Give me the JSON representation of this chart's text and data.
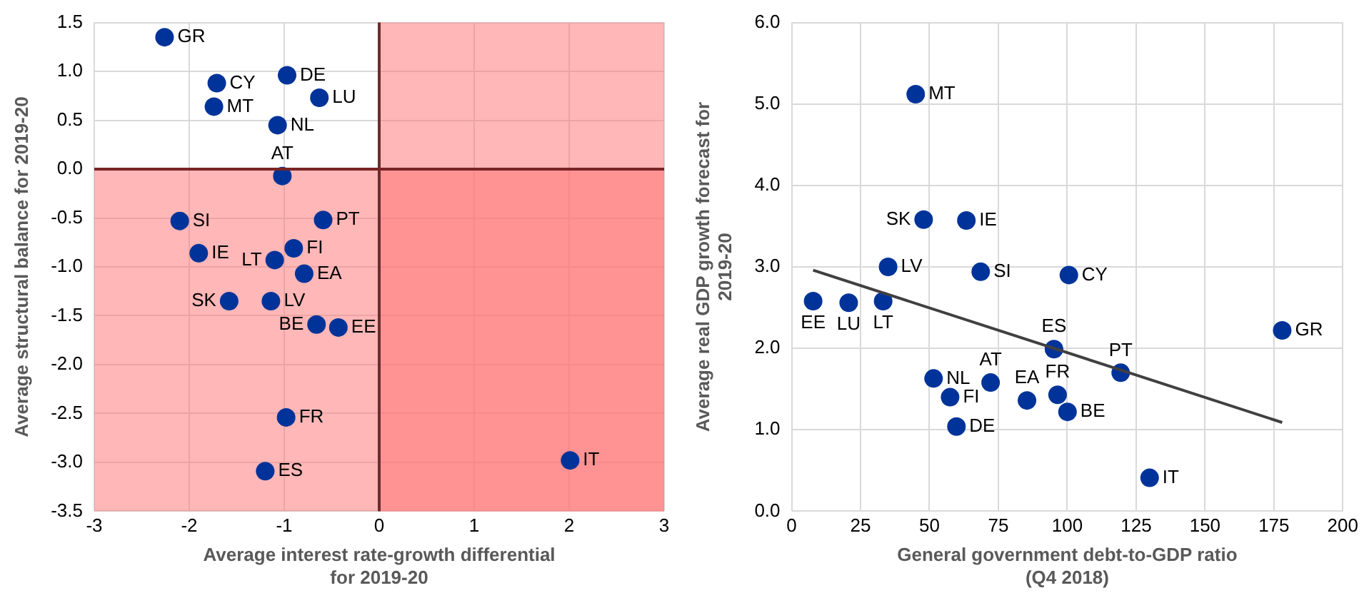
{
  "chart_data": [
    {
      "type": "scatter",
      "xlabel": "Average interest rate-growth differential for 2019-20",
      "ylabel": "Average structural balance for 2019-20",
      "series": [
        {
          "color": "#003399",
          "x": [
            -2.26,
            -1.71,
            -1.74,
            -0.97,
            -1.07,
            -0.63,
            -1.02,
            -2.1,
            -0.59,
            -1.9,
            -0.9,
            -1.1,
            -0.79,
            -1.58,
            -1.14,
            -0.66,
            -0.43,
            -0.98,
            -1.2,
            2.01
          ],
          "values": [
            1.35,
            0.88,
            0.64,
            0.96,
            0.45,
            0.73,
            -0.07,
            -0.53,
            -0.52,
            -0.86,
            -0.81,
            -0.93,
            -1.07,
            -1.35,
            -1.35,
            -1.59,
            -1.62,
            -2.54,
            -3.09,
            -2.98
          ]
        }
      ],
      "annotations": [
        {
          "text": "GR",
          "x": -2.26,
          "y": 1.35
        },
        {
          "text": "CY",
          "x": -1.71,
          "y": 0.88
        },
        {
          "text": "MT",
          "x": -1.74,
          "y": 0.64
        },
        {
          "text": "DE",
          "x": -0.97,
          "y": 0.96
        },
        {
          "text": "NL",
          "x": -1.07,
          "y": 0.45
        },
        {
          "text": "LU",
          "x": -0.63,
          "y": 0.73
        },
        {
          "text": "AT",
          "x": -1.02,
          "y": -0.07
        },
        {
          "text": "SI",
          "x": -2.1,
          "y": -0.53
        },
        {
          "text": "PT",
          "x": -0.59,
          "y": -0.52
        },
        {
          "text": "IE",
          "x": -1.9,
          "y": -0.86
        },
        {
          "text": "FI",
          "x": -0.9,
          "y": -0.81
        },
        {
          "text": "LT",
          "x": -1.1,
          "y": -0.93
        },
        {
          "text": "EA",
          "x": -0.79,
          "y": -1.07
        },
        {
          "text": "SK",
          "x": -1.58,
          "y": -1.35
        },
        {
          "text": "LV",
          "x": -1.14,
          "y": -1.35
        },
        {
          "text": "BE",
          "x": -0.66,
          "y": -1.59
        },
        {
          "text": "EE",
          "x": -0.43,
          "y": -1.62
        },
        {
          "text": "FR",
          "x": -0.98,
          "y": -2.54
        },
        {
          "text": "ES",
          "x": -1.2,
          "y": -3.09
        },
        {
          "text": "IT",
          "x": 2.01,
          "y": -2.98
        }
      ],
      "xlim": [
        -3,
        3
      ],
      "xticks": [
        -3,
        -2,
        -1,
        0,
        1,
        2,
        3
      ],
      "ylim": [
        -3.5,
        1.5
      ],
      "yticks": [
        -3.5,
        {
          "value": -3,
          "label": "-3.0"
        },
        -2.5,
        {
          "value": -2,
          "label": "-2.0"
        },
        -1.5,
        {
          "value": -1,
          "label": "-1.0"
        },
        -0.5,
        {
          "value": 0,
          "label": "0.0"
        },
        0.5,
        {
          "value": 1,
          "label": "1.0"
        },
        1.5
      ],
      "bands": [
        {
          "axis": "y",
          "from": -3.5,
          "to": 0,
          "color": "#ff7070"
        },
        {
          "axis": "x",
          "from": 0,
          "to": 3,
          "color": "#ff7070"
        }
      ],
      "ref_lines": [
        {
          "axis": "x",
          "value": 0,
          "color": "#6b2c2c"
        },
        {
          "axis": "y",
          "value": 0,
          "color": "#7a2424"
        }
      ],
      "grid": true,
      "legend": false,
      "marker": "circle"
    },
    {
      "type": "scatter",
      "xlabel": "General government debt-to-GDP ratio (Q4 2018)",
      "ylabel": "Average real GDP growth forecast for 2019-20",
      "series": [
        {
          "color": "#003399",
          "x": [
            45.0,
            47.9,
            63.4,
            35.0,
            68.6,
            100.6,
            7.8,
            20.7,
            33.2,
            178,
            95.2,
            51.5,
            72.2,
            57.5,
            59.8,
            85.4,
            96.5,
            100.1,
            119.4,
            129.9
          ],
          "values": [
            5.12,
            3.58,
            3.57,
            3.0,
            2.94,
            2.9,
            2.58,
            2.56,
            2.58,
            2.22,
            1.99,
            1.63,
            1.58,
            1.4,
            1.04,
            1.36,
            1.43,
            1.22,
            1.7,
            0.41
          ]
        },
        {
          "type": "line",
          "color": "#404040",
          "x": [
            7.8,
            178
          ],
          "values": [
            2.96,
            1.09
          ],
          "marker": "none"
        }
      ],
      "annotations": [
        {
          "text": "MT",
          "x": 45.0,
          "y": 5.12
        },
        {
          "text": "SK",
          "x": 47.9,
          "y": 3.58
        },
        {
          "text": "IE",
          "x": 63.4,
          "y": 3.57
        },
        {
          "text": "LV",
          "x": 35.0,
          "y": 3.0
        },
        {
          "text": "SI",
          "x": 68.6,
          "y": 2.94
        },
        {
          "text": "CY",
          "x": 100.6,
          "y": 2.9
        },
        {
          "text": "EE",
          "x": 7.8,
          "y": 2.58
        },
        {
          "text": "LU",
          "x": 20.7,
          "y": 2.56
        },
        {
          "text": "LT",
          "x": 33.2,
          "y": 2.58
        },
        {
          "text": "GR",
          "x": 178,
          "y": 2.22
        },
        {
          "text": "ES",
          "x": 95.2,
          "y": 1.99
        },
        {
          "text": "NL",
          "x": 51.5,
          "y": 1.63
        },
        {
          "text": "AT",
          "x": 72.2,
          "y": 1.58
        },
        {
          "text": "FI",
          "x": 57.5,
          "y": 1.4
        },
        {
          "text": "DE",
          "x": 59.8,
          "y": 1.04
        },
        {
          "text": "EA",
          "x": 85.4,
          "y": 1.36
        },
        {
          "text": "FR",
          "x": 96.5,
          "y": 1.43
        },
        {
          "text": "BE",
          "x": 100.1,
          "y": 1.22
        },
        {
          "text": "PT",
          "x": 119.4,
          "y": 1.7
        },
        {
          "text": "IT",
          "x": 129.9,
          "y": 0.41
        }
      ],
      "xlim": [
        0,
        200
      ],
      "xticks": [
        0,
        25,
        50,
        75,
        100,
        125,
        150,
        175,
        200
      ],
      "ylim": [
        0,
        6
      ],
      "yticks": [
        {
          "value": 0,
          "label": "0.0"
        },
        {
          "value": 1,
          "label": "1.0"
        },
        {
          "value": 2,
          "label": "2.0"
        },
        {
          "value": 3,
          "label": "3.0"
        },
        {
          "value": 4,
          "label": "4.0"
        },
        {
          "value": 5,
          "label": "5.0"
        },
        {
          "value": 6,
          "label": "6.0"
        }
      ],
      "grid": true,
      "legend": false,
      "marker": "circle"
    }
  ]
}
